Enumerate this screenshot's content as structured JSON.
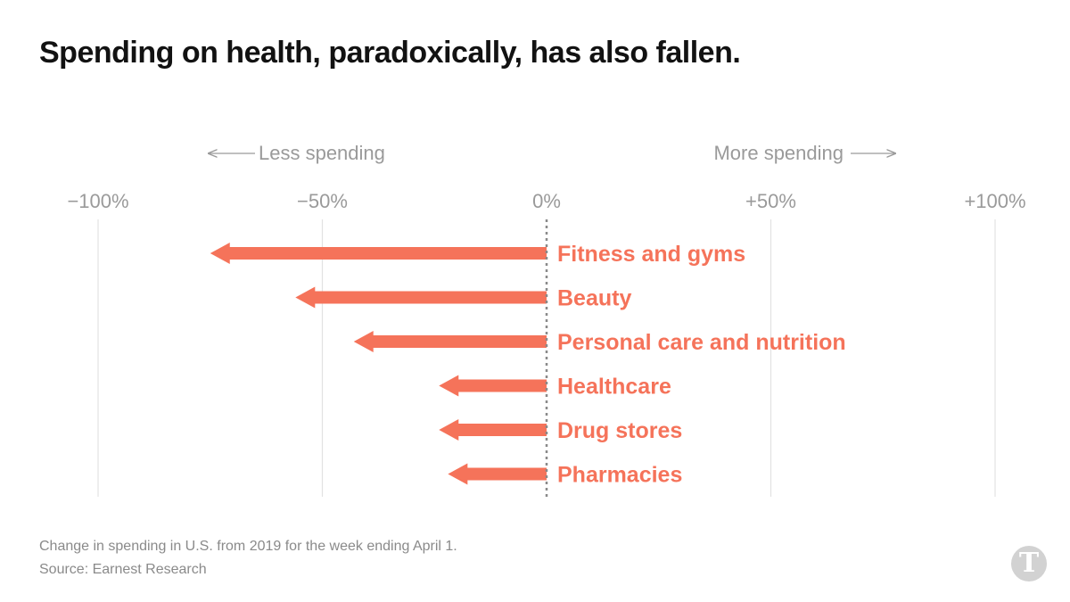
{
  "title": "Spending on health, paradoxically, has also fallen.",
  "direction_labels": {
    "left": "Less spending",
    "right": "More spending"
  },
  "chart_data": {
    "type": "bar",
    "title": "Spending on health, paradoxically, has also fallen.",
    "xlim": [
      -100,
      100
    ],
    "ticks": [
      -100,
      -50,
      0,
      50,
      100
    ],
    "tick_labels": [
      "−100%",
      "−50%",
      "0%",
      "+50%",
      "+100%"
    ],
    "categories": [
      "Fitness and gyms",
      "Beauty",
      "Personal care and nutrition",
      "Healthcare",
      "Drug stores",
      "Pharmacies"
    ],
    "values": [
      -75,
      -56,
      -43,
      -24,
      -24,
      -22
    ],
    "unit": "%",
    "orientation": "horizontal",
    "grid": true,
    "color": "#f5735a"
  },
  "footer": {
    "note": "Change in spending in U.S. from 2019 for the week ending April 1.",
    "source": "Source: Earnest Research"
  },
  "logo": {
    "icon": "nyt-logo-icon",
    "glyph": "T"
  },
  "colors": {
    "bar": "#f5735a",
    "grid": "#e2e2e2",
    "axis_text": "#9a9a9a",
    "title": "#121212"
  }
}
